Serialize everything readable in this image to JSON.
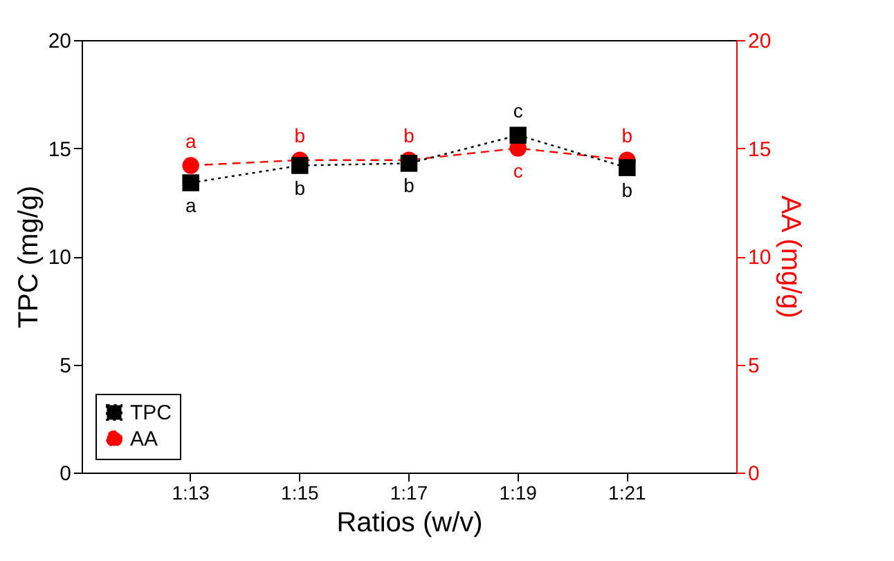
{
  "chart_data": {
    "type": "line",
    "xlabel": "Ratios (w/v)",
    "ylabel": "TPC (mg/g)",
    "y2label": "AA (mg/g)",
    "categories": [
      "1:13",
      "1:15",
      "1:17",
      "1:19",
      "1:21"
    ],
    "ylim": [
      0,
      20
    ],
    "yticks": [
      0,
      5,
      10,
      15,
      20
    ],
    "y2lim": [
      0,
      20
    ],
    "y2ticks": [
      0,
      5,
      10,
      15,
      20
    ],
    "series": [
      {
        "name": "TPC",
        "color": "#000000",
        "values": [
          13.4,
          14.2,
          14.3,
          15.6,
          14.1
        ],
        "value_labels": [
          "a",
          "b",
          "b",
          "c",
          "b"
        ],
        "errors": [
          0.3,
          0.2,
          0.3,
          0.2,
          0.3
        ],
        "marker": "square",
        "line_style": "dotted"
      },
      {
        "name": "AA",
        "color": "#ff0000",
        "values": [
          14.2,
          14.45,
          14.45,
          15.0,
          14.45
        ],
        "value_labels": [
          "a",
          "b",
          "b",
          "c",
          "b"
        ],
        "axis": "y2",
        "marker": "circle",
        "line_style": "dashed"
      }
    ],
    "legend": "bottom left",
    "grid": false
  }
}
